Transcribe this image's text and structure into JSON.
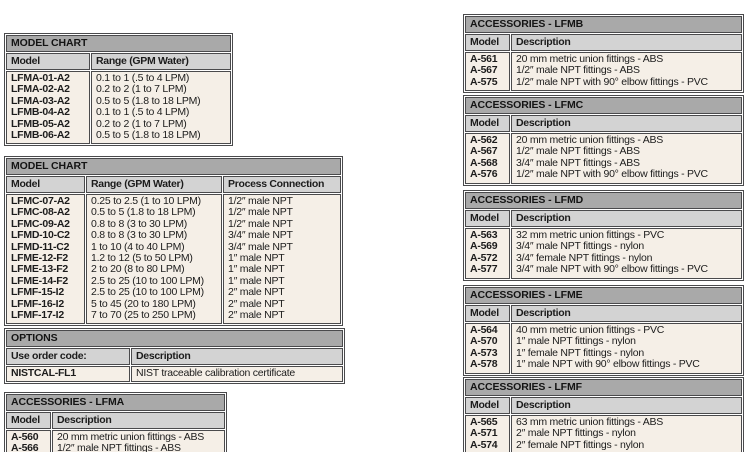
{
  "colors": {
    "title_bar": "#a9a9a9",
    "header_row": "#d3d3d3",
    "table_body": "#f5efe7",
    "border": "#4a4a4c"
  },
  "tables": [
    {
      "title": "MODEL CHART",
      "headers": [
        "Model",
        "Range (GPM Water)"
      ],
      "rows": [
        [
          "LFMA-01-A2",
          "0.1 to 1 (.5 to 4 LPM)"
        ],
        [
          "LFMA-02-A2",
          "0.2 to 2 (1 to 7 LPM)"
        ],
        [
          "LFMA-03-A2",
          "0.5 to 5 (1.8 to 18 LPM)"
        ],
        [
          "LFMB-04-A2",
          "0.1 to 1 (.5 to 4 LPM)"
        ],
        [
          "LFMB-05-A2",
          "0.2 to 2 (1 to 7 LPM)"
        ],
        [
          "LFMB-06-A2",
          "0.5 to 5 (1.8 to 18 LPM)"
        ]
      ]
    },
    {
      "title": "MODEL CHART",
      "headers": [
        "Model",
        "Range (GPM Water)",
        "Process Connection"
      ],
      "rows": [
        [
          "LFMC-07-A2",
          "0.25 to 2.5 (1 to 10 LPM)",
          "1/2″ male NPT"
        ],
        [
          "LFMC-08-A2",
          "0.5 to 5 (1.8 to 18 LPM)",
          "1/2″ male NPT"
        ],
        [
          "LFMC-09-A2",
          "0.8 to 8 (3 to 30 LPM)",
          "1/2″ male NPT"
        ],
        [
          "LFMD-10-C2",
          "0.8 to 8 (3 to 30 LPM)",
          "3/4″ male NPT"
        ],
        [
          "LFMD-11-C2",
          "1 to 10 (4 to 40 LPM)",
          "3/4″ male NPT"
        ],
        [
          "LFME-12-F2",
          "1.2 to 12 (5 to 50 LPM)",
          "1″ male NPT"
        ],
        [
          "LFME-13-F2",
          "2 to 20 (8 to 80 LPM)",
          "1″ male NPT"
        ],
        [
          "LFME-14-F2",
          "2.5 to 25 (10 to 100 LPM)",
          "1″ male NPT"
        ],
        [
          "LFMF-15-I2",
          "2.5 to 25 (10 to 100 LPM)",
          "2″ male NPT"
        ],
        [
          "LFMF-16-I2",
          "5 to 45 (20 to 180 LPM)",
          "2″ male NPT"
        ],
        [
          "LFMF-17-I2",
          "7 to 70 (25 to 250 LPM)",
          "2″ male NPT"
        ]
      ]
    },
    {
      "title": "OPTIONS",
      "headers": [
        "Use order code:",
        "Description"
      ],
      "rows": [
        [
          "NISTCAL-FL1",
          "NIST traceable calibration certificate"
        ]
      ]
    },
    {
      "title": "ACCESSORIES - LFMA",
      "headers": [
        "Model",
        "Description"
      ],
      "rows": [
        [
          "A-560",
          "20 mm metric union fittings - ABS"
        ],
        [
          "A-566",
          "1/2″ male NPT fittings - ABS"
        ]
      ]
    },
    {
      "title": "ACCESSORIES - LFMB",
      "headers": [
        "Model",
        "Description"
      ],
      "rows": [
        [
          "A-561",
          "20 mm metric union fittings - ABS"
        ],
        [
          "A-567",
          "1/2″ male NPT fittings - ABS"
        ],
        [
          "A-575",
          "1/2″ male NPT with 90° elbow fittings - PVC"
        ]
      ]
    },
    {
      "title": "ACCESSORIES - LFMC",
      "headers": [
        "Model",
        "Description"
      ],
      "rows": [
        [
          "A-562",
          "20 mm metric union fittings - ABS"
        ],
        [
          "A-567",
          "1/2″ male NPT fittings - ABS"
        ],
        [
          "A-568",
          "3/4″ male NPT fittings - ABS"
        ],
        [
          "A-576",
          "1/2″ male NPT with 90° elbow fittings - PVC"
        ]
      ]
    },
    {
      "title": "ACCESSORIES - LFMD",
      "headers": [
        "Model",
        "Description"
      ],
      "rows": [
        [
          "A-563",
          "32 mm metric union fittings - PVC"
        ],
        [
          "A-569",
          "3/4″ male NPT fittings - nylon"
        ],
        [
          "A-572",
          "3/4″ female NPT fittings - nylon"
        ],
        [
          "A-577",
          "3/4″ male NPT with 90° elbow fittings - PVC"
        ]
      ]
    },
    {
      "title": "ACCESSORIES - LFME",
      "headers": [
        "Model",
        "Description"
      ],
      "rows": [
        [
          "A-564",
          "40 mm metric union fittings - PVC"
        ],
        [
          "A-570",
          "1″ male NPT fittings - nylon"
        ],
        [
          "A-573",
          "1″ female NPT fittings - nylon"
        ],
        [
          "A-578",
          "1″ male NPT with 90° elbow fittings - PVC"
        ]
      ]
    },
    {
      "title": "ACCESSORIES - LFMF",
      "headers": [
        "Model",
        "Description"
      ],
      "rows": [
        [
          "A-565",
          "63 mm metric union fittings - ABS"
        ],
        [
          "A-571",
          "2″ male NPT fittings - nylon"
        ],
        [
          "A-574",
          "2″ female NPT fittings - nylon"
        ]
      ]
    }
  ]
}
